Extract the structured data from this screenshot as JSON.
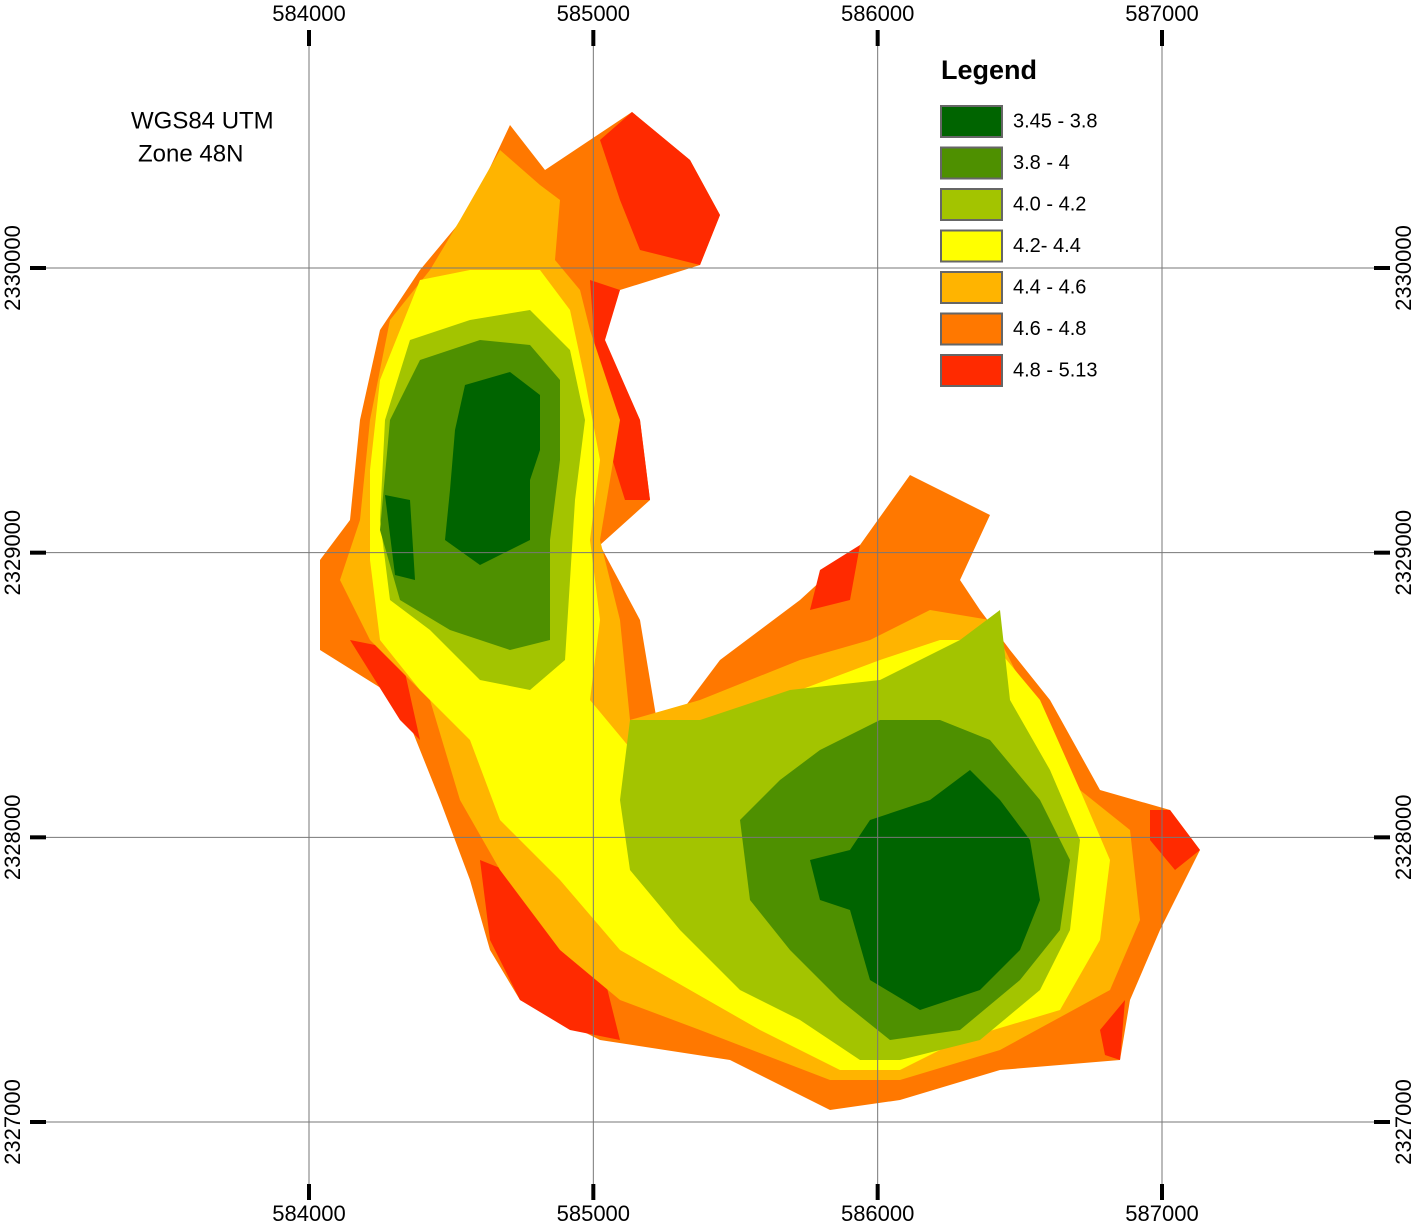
{
  "map": {
    "x_ticks": [
      584000,
      585000,
      586000,
      587000
    ],
    "y_ticks": [
      2330000,
      2329000,
      2328000,
      2327000
    ],
    "projection": [
      "WGS84 UTM",
      "Zone 48N"
    ],
    "legend": {
      "title": "Legend",
      "classes": [
        {
          "label": "3.45 - 3.8",
          "color": "#006400"
        },
        {
          "label": "3.8 - 4",
          "color": "#4e9000"
        },
        {
          "label": "4.0 - 4.2",
          "color": "#a3c400"
        },
        {
          "label": "4.2- 4.4",
          "color": "#ffff00"
        },
        {
          "label": "4.4 - 4.6",
          "color": "#ffb400"
        },
        {
          "label": "4.6 - 4.8",
          "color": "#ff7800"
        },
        {
          "label": "4.8 - 5.13",
          "color": "#ff2a00"
        }
      ]
    }
  }
}
